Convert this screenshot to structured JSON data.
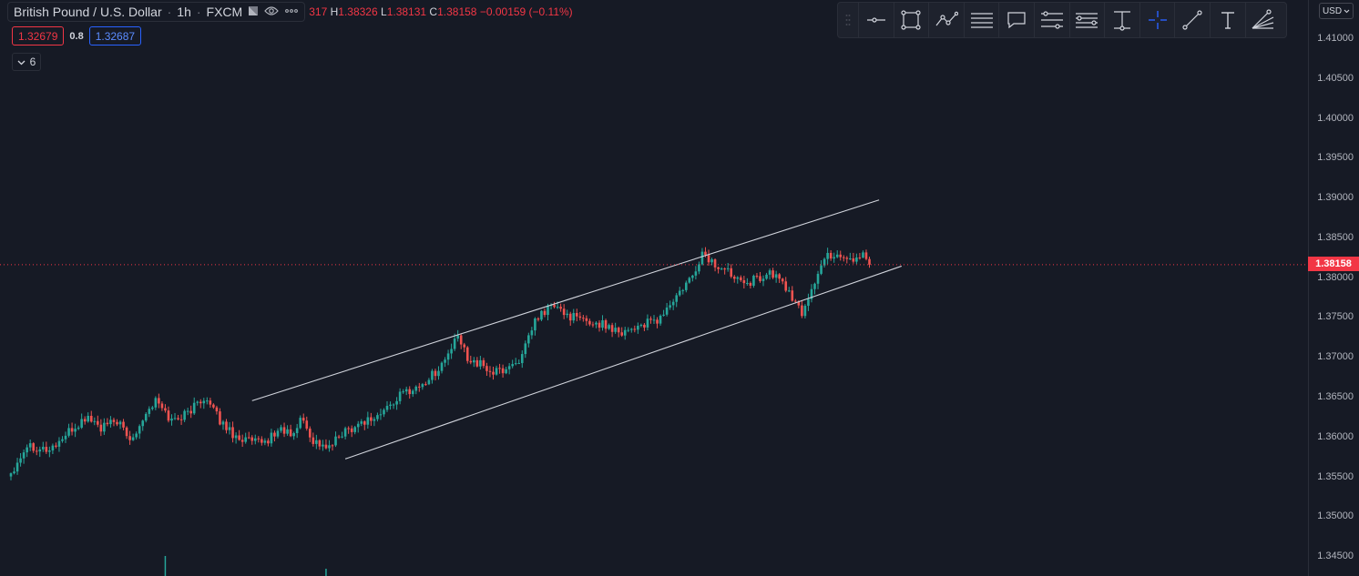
{
  "legend": {
    "symbol": "British Pound / U.S. Dollar",
    "interval": "1h",
    "exchange": "FXCM",
    "ohlc_fragment": "317",
    "high_key": "H",
    "high": "1.38326",
    "low_key": "L",
    "low": "1.38131",
    "close_key": "C",
    "close": "1.38158",
    "change": "−0.00159 (−0.11%)",
    "bid": "1.32679",
    "spread": "0.8",
    "ask": "1.32687",
    "indicators_count": "6"
  },
  "price_axis": {
    "currency": "USD",
    "last_price_label": "1.38158",
    "tick_labels": [
      "1.41000",
      "1.40500",
      "1.40000",
      "1.39500",
      "1.39000",
      "1.38500",
      "1.38000",
      "1.37500",
      "1.37000",
      "1.36500",
      "1.36000",
      "1.35500",
      "1.35000",
      "1.34500"
    ]
  },
  "toolbar": {
    "tools": [
      {
        "icon": "horizontal-ray-icon"
      },
      {
        "icon": "rectangle-icon"
      },
      {
        "icon": "path-icon"
      },
      {
        "icon": "parallel-lines-icon"
      },
      {
        "icon": "callout-icon"
      },
      {
        "icon": "fib-levels-icon"
      },
      {
        "icon": "fib-channel-icon"
      },
      {
        "icon": "price-range-icon"
      },
      {
        "icon": "crosshair-icon"
      },
      {
        "icon": "trend-line-icon"
      },
      {
        "icon": "text-icon"
      },
      {
        "icon": "fib-fan-icon"
      }
    ]
  },
  "colors": {
    "background": "#161a25",
    "up": "#26a69a",
    "down": "#ef5350",
    "accent": "#2962ff",
    "last_price_line": "#f23645",
    "trendlines": "#d1d4dc"
  },
  "chart_data": {
    "type": "candlestick",
    "title": "British Pound / U.S. Dollar",
    "interval": "1h",
    "ylim": [
      1.3425,
      1.4148
    ],
    "last_price": 1.38158,
    "y_ticks": [
      1.41,
      1.405,
      1.4,
      1.395,
      1.39,
      1.385,
      1.38,
      1.375,
      1.37,
      1.365,
      1.36,
      1.355,
      1.35,
      1.345
    ],
    "waypoints": [
      [
        0,
        1.3555
      ],
      [
        5,
        1.359
      ],
      [
        12,
        1.3583
      ],
      [
        18,
        1.3605
      ],
      [
        24,
        1.3625
      ],
      [
        28,
        1.361
      ],
      [
        33,
        1.362
      ],
      [
        37,
        1.3595
      ],
      [
        42,
        1.363
      ],
      [
        45,
        1.3645
      ],
      [
        50,
        1.362
      ],
      [
        55,
        1.363
      ],
      [
        60,
        1.365
      ],
      [
        65,
        1.362
      ],
      [
        70,
        1.36
      ],
      [
        78,
        1.359
      ],
      [
        84,
        1.361
      ],
      [
        88,
        1.36
      ],
      [
        90,
        1.3625
      ],
      [
        94,
        1.3595
      ],
      [
        99,
        1.3585
      ],
      [
        103,
        1.3605
      ],
      [
        110,
        1.362
      ],
      [
        114,
        1.3625
      ],
      [
        118,
        1.364
      ],
      [
        122,
        1.3655
      ],
      [
        128,
        1.3665
      ],
      [
        134,
        1.369
      ],
      [
        139,
        1.3725
      ],
      [
        142,
        1.37
      ],
      [
        146,
        1.369
      ],
      [
        150,
        1.368
      ],
      [
        154,
        1.3685
      ],
      [
        159,
        1.37
      ],
      [
        163,
        1.3745
      ],
      [
        168,
        1.3765
      ],
      [
        172,
        1.3755
      ],
      [
        178,
        1.3745
      ],
      [
        185,
        1.374
      ],
      [
        190,
        1.3732
      ],
      [
        196,
        1.374
      ],
      [
        201,
        1.3745
      ],
      [
        207,
        1.3775
      ],
      [
        212,
        1.38
      ],
      [
        215,
        1.383
      ],
      [
        219,
        1.3815
      ],
      [
        224,
        1.3805
      ],
      [
        230,
        1.3795
      ],
      [
        236,
        1.3805
      ],
      [
        240,
        1.3795
      ],
      [
        242,
        1.378
      ],
      [
        244,
        1.3765
      ],
      [
        246,
        1.3755
      ],
      [
        248,
        1.3775
      ],
      [
        251,
        1.3805
      ],
      [
        254,
        1.3828
      ],
      [
        258,
        1.3828
      ],
      [
        262,
        1.3822
      ],
      [
        265,
        1.383
      ],
      [
        267,
        1.38158
      ]
    ],
    "volume_spikes": [
      [
        48,
        22
      ],
      [
        98,
        8
      ]
    ],
    "trendlines": [
      {
        "name": "upper",
        "from": [
          75,
          1.3645
        ],
        "to": [
          270,
          1.3897
        ]
      },
      {
        "name": "lower",
        "from": [
          104,
          1.3572
        ],
        "to": [
          277,
          1.3814
        ]
      }
    ]
  }
}
